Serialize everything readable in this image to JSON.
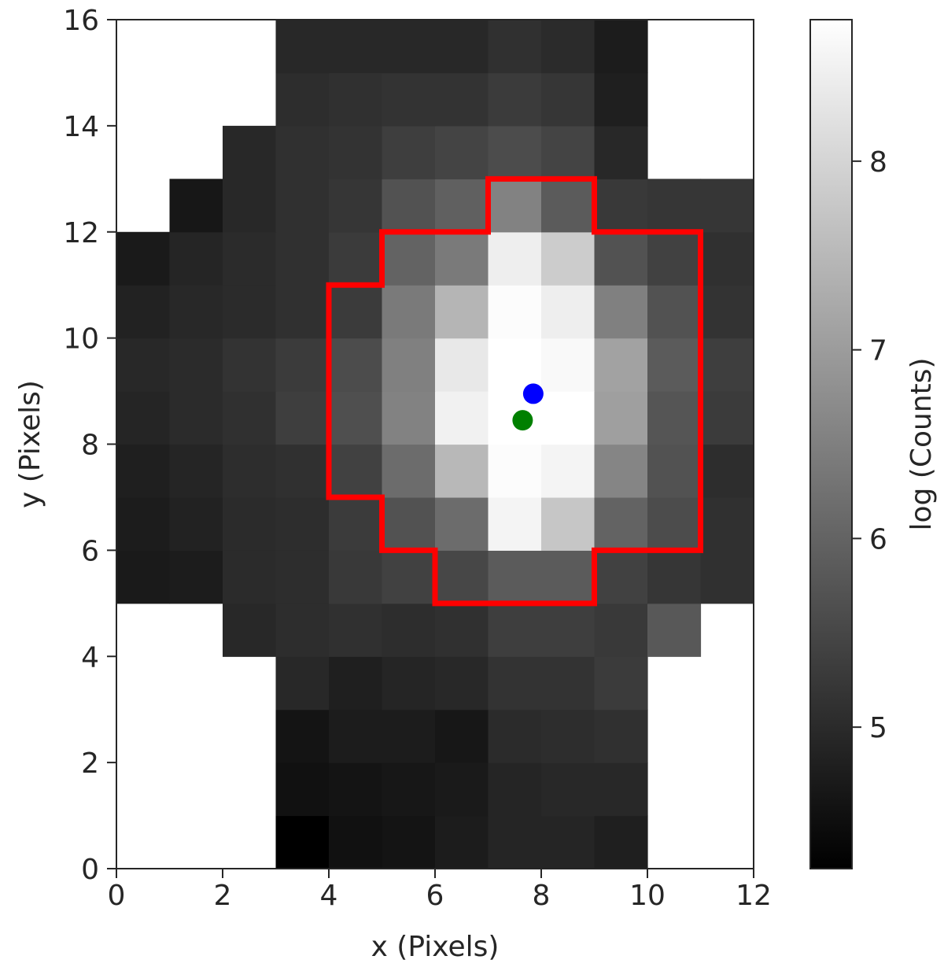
{
  "chart_data": {
    "type": "heatmap",
    "xlabel": "x (Pixels)",
    "ylabel": "y (Pixels)",
    "xlim": [
      0,
      12
    ],
    "ylim": [
      0,
      16
    ],
    "x_ticks": [
      "0",
      "2",
      "4",
      "6",
      "8",
      "10",
      "12"
    ],
    "y_ticks": [
      "0",
      "2",
      "4",
      "6",
      "8",
      "10",
      "12",
      "14",
      "16"
    ],
    "colormap": "gray",
    "colorbar": {
      "label": "log (Counts)",
      "range": [
        4.25,
        8.75
      ],
      "ticks": [
        "5",
        "6",
        "7",
        "8"
      ]
    },
    "grid": false,
    "rows_bottom_to_top": [
      [
        null,
        null,
        null,
        4.25,
        4.55,
        4.6,
        4.75,
        4.9,
        4.9,
        4.8,
        null,
        null
      ],
      [
        null,
        null,
        null,
        4.55,
        4.6,
        4.65,
        4.7,
        4.9,
        4.95,
        4.95,
        null,
        null
      ],
      [
        null,
        null,
        null,
        4.6,
        4.75,
        4.75,
        4.65,
        5.0,
        5.05,
        5.1,
        null,
        null
      ],
      [
        null,
        null,
        null,
        4.95,
        4.8,
        4.9,
        4.95,
        5.15,
        5.15,
        5.3,
        null,
        null
      ],
      [
        null,
        null,
        4.95,
        5.05,
        5.1,
        5.05,
        5.1,
        5.35,
        5.35,
        5.25,
        5.8,
        null
      ],
      [
        4.7,
        4.75,
        5.0,
        5.05,
        5.25,
        5.4,
        5.5,
        5.85,
        5.85,
        5.4,
        5.2,
        5.1
      ],
      [
        4.75,
        4.85,
        5.0,
        5.05,
        5.3,
        5.7,
        6.15,
        8.55,
        7.75,
        6.0,
        5.6,
        5.1
      ],
      [
        4.8,
        4.9,
        5.05,
        5.1,
        5.4,
        6.15,
        7.5,
        8.7,
        8.55,
        6.6,
        5.7,
        5.05
      ],
      [
        4.9,
        5.0,
        5.1,
        5.35,
        5.65,
        6.55,
        8.5,
        8.75,
        8.75,
        7.05,
        5.75,
        5.3
      ],
      [
        4.95,
        5.0,
        5.15,
        5.3,
        5.6,
        6.5,
        8.35,
        8.75,
        8.65,
        7.1,
        5.85,
        5.35
      ],
      [
        4.85,
        4.95,
        5.0,
        5.1,
        5.3,
        6.4,
        7.45,
        8.7,
        8.45,
        6.5,
        5.7,
        5.15
      ],
      [
        4.7,
        4.9,
        5.0,
        5.1,
        5.3,
        6.0,
        6.4,
        8.45,
        7.85,
        5.7,
        5.4,
        5.1
      ],
      [
        null,
        4.65,
        4.95,
        5.1,
        5.2,
        5.7,
        5.95,
        6.55,
        5.85,
        5.25,
        5.2,
        5.2
      ],
      [
        null,
        null,
        4.95,
        5.1,
        5.15,
        5.35,
        5.45,
        5.6,
        5.45,
        4.95,
        null,
        null
      ],
      [
        null,
        null,
        null,
        5.05,
        5.1,
        5.15,
        5.15,
        5.3,
        5.2,
        4.8,
        null,
        null
      ],
      [
        null,
        null,
        null,
        4.95,
        4.95,
        4.95,
        4.95,
        5.1,
        5.0,
        4.75,
        null,
        null
      ]
    ],
    "aperture_outline": [
      [
        4,
        7
      ],
      [
        5,
        7
      ],
      [
        5,
        6
      ],
      [
        6,
        6
      ],
      [
        6,
        5
      ],
      [
        9,
        5
      ],
      [
        9,
        6
      ],
      [
        11,
        6
      ],
      [
        11,
        12
      ],
      [
        9,
        12
      ],
      [
        9,
        13
      ],
      [
        7,
        13
      ],
      [
        7,
        12
      ],
      [
        5,
        12
      ],
      [
        5,
        11
      ],
      [
        4,
        11
      ],
      [
        4,
        7
      ]
    ],
    "aperture_color": "#ff0000",
    "points": [
      {
        "x": 7.85,
        "y": 8.95,
        "color": "#0000ff"
      },
      {
        "x": 7.65,
        "y": 8.45,
        "color": "#008000"
      }
    ]
  }
}
